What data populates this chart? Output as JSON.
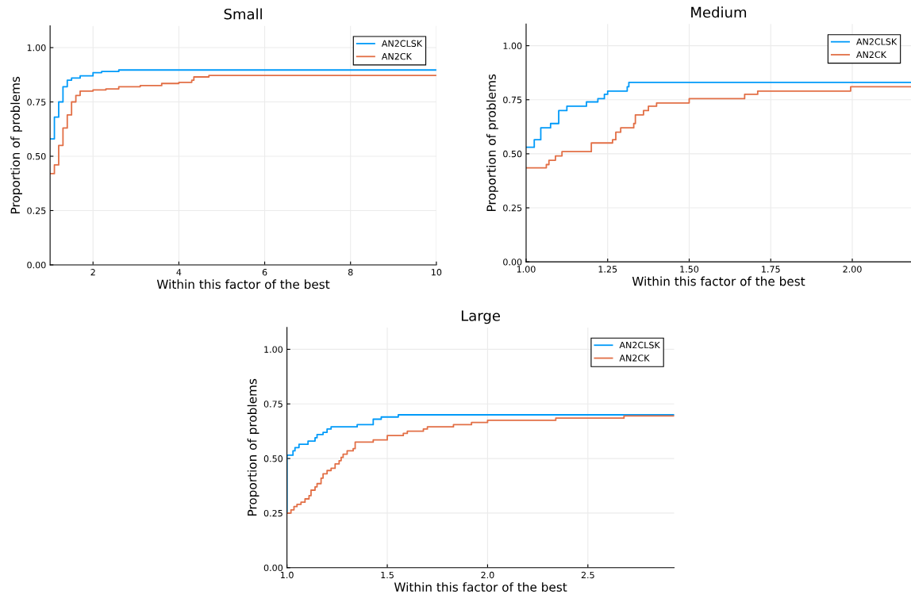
{
  "chart_data": [
    {
      "type": "step",
      "title": "Small",
      "xlabel": "Within this factor of the best",
      "ylabel": "Proportion of problems",
      "xlim": [
        1,
        10
      ],
      "ylim": [
        0,
        1.1
      ],
      "xticks": [
        2,
        4,
        6,
        8,
        10
      ],
      "yticks": [
        {
          "value": 0,
          "label": "0.00"
        },
        {
          "value": 0.25,
          "label": "0.25"
        },
        {
          "value": 0.5,
          "label": "0.50"
        },
        {
          "value": 0.75,
          "label": "0.75"
        },
        {
          "value": 1,
          "label": "1.00"
        }
      ],
      "grid": true,
      "legend": "top right",
      "series": [
        {
          "name": "AN2CLSK",
          "color": "#009af9",
          "x": [
            1,
            1.1,
            1.2,
            1.3,
            1.4,
            1.5,
            1.7,
            2.0,
            2.2,
            2.6,
            10
          ],
          "values": [
            0.58,
            0.68,
            0.75,
            0.82,
            0.85,
            0.86,
            0.87,
            0.885,
            0.89,
            0.897,
            0.897
          ]
        },
        {
          "name": "AN2CK",
          "color": "#e26f46",
          "x": [
            1,
            1.1,
            1.2,
            1.3,
            1.4,
            1.5,
            1.6,
            1.7,
            2.0,
            2.3,
            2.6,
            3.1,
            3.6,
            4.0,
            4.3,
            4.35,
            4.7,
            10
          ],
          "values": [
            0.42,
            0.46,
            0.55,
            0.63,
            0.69,
            0.75,
            0.78,
            0.8,
            0.805,
            0.81,
            0.82,
            0.825,
            0.835,
            0.84,
            0.85,
            0.865,
            0.872,
            0.872
          ]
        }
      ]
    },
    {
      "type": "step",
      "title": "Medium",
      "xlabel": "Within this factor of the best",
      "ylabel": "Proportion of problems",
      "xlim": [
        1,
        2.18
      ],
      "ylim": [
        0,
        1.1
      ],
      "xticks": [
        {
          "value": 1,
          "label": "1.00"
        },
        {
          "value": 1.25,
          "label": "1.25"
        },
        {
          "value": 1.5,
          "label": "1.50"
        },
        {
          "value": 1.75,
          "label": "1.75"
        },
        {
          "value": 2,
          "label": "2.00"
        }
      ],
      "yticks": [
        {
          "value": 0,
          "label": "0.00"
        },
        {
          "value": 0.25,
          "label": "0.25"
        },
        {
          "value": 0.5,
          "label": "0.50"
        },
        {
          "value": 0.75,
          "label": "0.75"
        },
        {
          "value": 1,
          "label": "1.00"
        }
      ],
      "grid": true,
      "legend": "top right",
      "series": [
        {
          "name": "AN2CLSK",
          "color": "#009af9",
          "x": [
            1,
            1.025,
            1.045,
            1.075,
            1.1,
            1.125,
            1.185,
            1.22,
            1.24,
            1.25,
            1.31,
            1.315,
            2.18
          ],
          "values": [
            0.53,
            0.565,
            0.62,
            0.64,
            0.7,
            0.72,
            0.74,
            0.755,
            0.775,
            0.79,
            0.81,
            0.83,
            0.83
          ]
        },
        {
          "name": "AN2CK",
          "color": "#e26f46",
          "x": [
            1,
            1.062,
            1.07,
            1.09,
            1.11,
            1.2,
            1.265,
            1.275,
            1.29,
            1.33,
            1.335,
            1.36,
            1.375,
            1.4,
            1.5,
            1.67,
            1.71,
            1.995,
            2.18
          ],
          "values": [
            0.435,
            0.45,
            0.47,
            0.49,
            0.51,
            0.55,
            0.565,
            0.6,
            0.62,
            0.64,
            0.68,
            0.7,
            0.72,
            0.735,
            0.755,
            0.775,
            0.79,
            0.81,
            0.81
          ]
        }
      ]
    },
    {
      "type": "step",
      "title": "Large",
      "xlabel": "Within this factor of the best",
      "ylabel": "Proportion of problems",
      "xlim": [
        1,
        2.93
      ],
      "ylim": [
        0,
        1.1
      ],
      "xticks": [
        {
          "value": 1,
          "label": "1.0"
        },
        1.5,
        {
          "value": 2,
          "label": "2.0"
        },
        2.5
      ],
      "yticks": [
        {
          "value": 0,
          "label": "0.00"
        },
        {
          "value": 0.25,
          "label": "0.25"
        },
        {
          "value": 0.5,
          "label": "0.50"
        },
        {
          "value": 0.75,
          "label": "0.75"
        },
        {
          "value": 1,
          "label": "1.00"
        }
      ],
      "grid": true,
      "legend": "top right",
      "series": [
        {
          "name": "AN2CLSK",
          "color": "#009af9",
          "x": [
            1,
            1.0,
            1.03,
            1.04,
            1.06,
            1.105,
            1.14,
            1.15,
            1.18,
            1.2,
            1.22,
            1.35,
            1.43,
            1.47,
            1.555,
            2.93
          ],
          "values": [
            0.25,
            0.515,
            0.535,
            0.55,
            0.565,
            0.58,
            0.595,
            0.61,
            0.62,
            0.635,
            0.645,
            0.655,
            0.68,
            0.69,
            0.7,
            0.7
          ]
        },
        {
          "name": "AN2CK",
          "color": "#e26f46",
          "x": [
            1,
            1.02,
            1.035,
            1.05,
            1.07,
            1.09,
            1.11,
            1.12,
            1.14,
            1.15,
            1.17,
            1.18,
            1.2,
            1.22,
            1.24,
            1.26,
            1.27,
            1.28,
            1.3,
            1.33,
            1.34,
            1.43,
            1.5,
            1.58,
            1.6,
            1.68,
            1.7,
            1.83,
            1.92,
            2.0,
            2.34,
            2.68,
            2.93
          ],
          "values": [
            0.25,
            0.265,
            0.28,
            0.29,
            0.3,
            0.315,
            0.33,
            0.355,
            0.37,
            0.385,
            0.41,
            0.43,
            0.445,
            0.455,
            0.475,
            0.49,
            0.505,
            0.52,
            0.535,
            0.545,
            0.575,
            0.585,
            0.605,
            0.615,
            0.625,
            0.635,
            0.645,
            0.655,
            0.665,
            0.675,
            0.685,
            0.695,
            0.695
          ]
        }
      ]
    }
  ]
}
